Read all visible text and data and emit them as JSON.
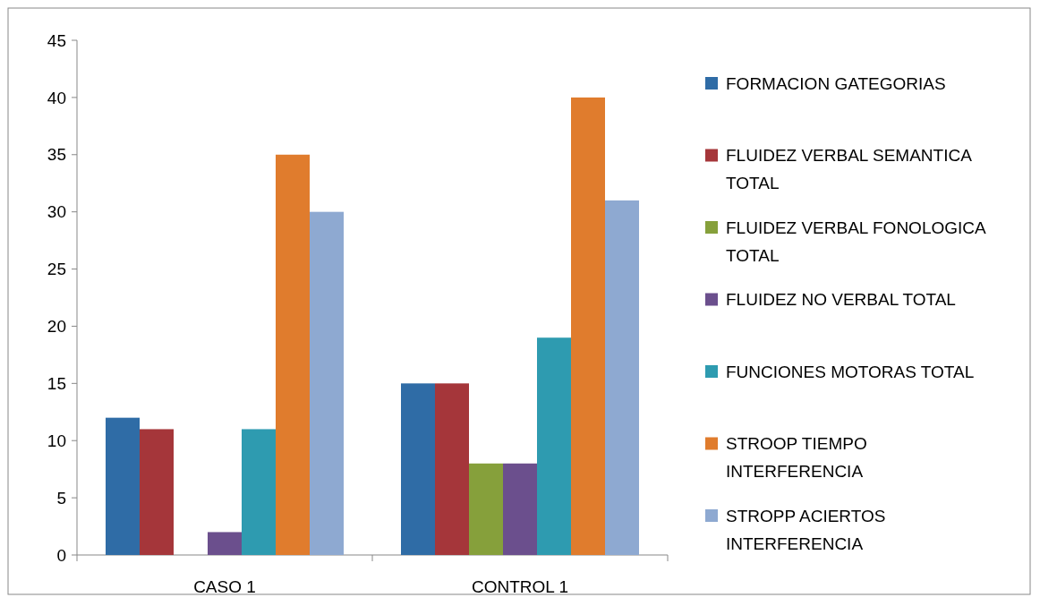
{
  "chart_data": {
    "type": "bar",
    "categories": [
      "CASO 1",
      "CONTROL 1"
    ],
    "ylim": [
      0,
      45
    ],
    "yticks": [
      0,
      5,
      10,
      15,
      20,
      25,
      30,
      35,
      40,
      45
    ],
    "grid": false,
    "legend": "right",
    "series": [
      {
        "name": "FORMACION GATEGORIAS",
        "color": "#2f6ca6",
        "values": [
          12,
          15
        ]
      },
      {
        "name": "FLUIDEZ VERBAL SEMANTICA TOTAL",
        "color": "#a5363a",
        "values": [
          11,
          15
        ]
      },
      {
        "name": "FLUIDEZ VERBAL FONOLOGICA TOTAL",
        "color": "#86a03b",
        "values": [
          0,
          8
        ]
      },
      {
        "name": "FLUIDEZ NO VERBAL TOTAL",
        "color": "#6b4f8d",
        "values": [
          2,
          8
        ]
      },
      {
        "name": "FUNCIONES MOTORAS TOTAL",
        "color": "#2e9bb0",
        "values": [
          11,
          19
        ]
      },
      {
        "name": "STROOP TIEMPO INTERFERENCIA",
        "color": "#e07c2d",
        "values": [
          35,
          40
        ]
      },
      {
        "name": "STROPP ACIERTOS INTERFERENCIA",
        "color": "#8ea9d1",
        "values": [
          30,
          31
        ]
      }
    ]
  }
}
